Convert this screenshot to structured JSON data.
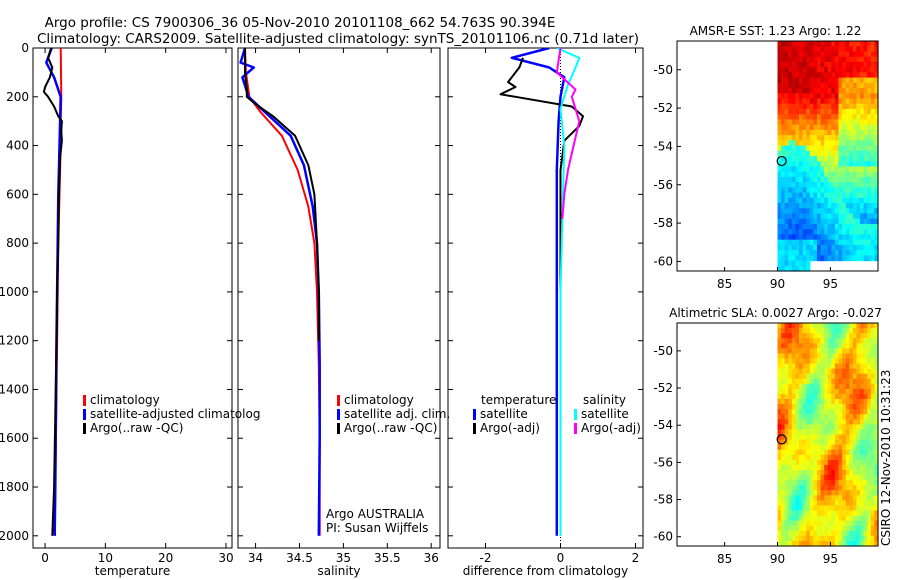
{
  "figure": {
    "title_line1": "Argo profile: CS 7900306_36 05-Nov-2010 20101108_662 54.763S 90.394E",
    "title_line2": "Climatology: CARS2009. Satellite-adjusted climatology: synTS_20101106.nc (0.71d later)",
    "side_stamp": "CSIRO 12-Nov-2010 10:31:23",
    "agency": "Argo AUSTRALIA",
    "pi": "PI: Susan Wijffels"
  },
  "colors": {
    "climatology": "#ff0000",
    "satellite": "#0000ff",
    "argo": "#000000",
    "argo_adj_salinity": "#ff00ff",
    "sat_salinity": "#00ffff"
  },
  "chart_data": [
    {
      "id": "temperature",
      "type": "line",
      "xlabel": "temperature",
      "xlim": [
        -2,
        31
      ],
      "ylim": [
        0,
        2050
      ],
      "y_reversed": true,
      "xticks": [
        0,
        10,
        20,
        30
      ],
      "yticks": [
        0,
        200,
        400,
        600,
        800,
        1000,
        1200,
        1400,
        1600,
        1800,
        2000
      ],
      "legend": [
        "climatology",
        "satellite-adjusted climatolog",
        "Argo(..raw -QC)"
      ],
      "series": [
        {
          "name": "climatology",
          "color": "#ff0000",
          "width": 2,
          "x": [
            2.6,
            2.7,
            2.6,
            2.6,
            2.5,
            2.4,
            2.2,
            2.1,
            2.0,
            1.9,
            1.8,
            1.7,
            1.6
          ],
          "y": [
            0,
            200,
            300,
            400,
            500,
            600,
            800,
            1000,
            1200,
            1400,
            1600,
            1800,
            2000
          ]
        },
        {
          "name": "satellite-adjusted climatology",
          "color": "#0000ff",
          "width": 2.5,
          "x": [
            1.1,
            0.2,
            1.5,
            2.6,
            2.5,
            2.4,
            2.2,
            2.1,
            2.0,
            1.9,
            1.8,
            1.7,
            1.6
          ],
          "y": [
            0,
            60,
            120,
            200,
            300,
            400,
            600,
            800,
            1000,
            1200,
            1500,
            1800,
            2000
          ]
        },
        {
          "name": "Argo(..raw -QC)",
          "color": "#000000",
          "width": 2,
          "x": [
            1.0,
            0.5,
            1.2,
            0.8,
            0.0,
            -0.2,
            0.5,
            1.5,
            2.2,
            2.8,
            2.7,
            2.8,
            2.5,
            2.3,
            2.2,
            2.0,
            1.9,
            1.7,
            1.5,
            1.2
          ],
          "y": [
            0,
            40,
            80,
            120,
            160,
            180,
            200,
            240,
            280,
            300,
            340,
            380,
            450,
            600,
            800,
            1000,
            1200,
            1500,
            1800,
            2000
          ]
        }
      ]
    },
    {
      "id": "salinity",
      "type": "line",
      "xlabel": "salinity",
      "xlim": [
        33.8,
        36.1
      ],
      "ylim": [
        0,
        2050
      ],
      "y_reversed": true,
      "xticks": [
        34,
        34.5,
        35,
        35.5,
        36
      ],
      "legend": [
        "climatology",
        "satellite adj. clim.",
        "Argo(..raw -QC)"
      ],
      "series": [
        {
          "name": "climatology",
          "color": "#ff0000",
          "width": 2,
          "x": [
            33.88,
            33.89,
            33.93,
            34.05,
            34.3,
            34.48,
            34.6,
            34.67,
            34.7,
            34.72,
            34.73,
            34.73
          ],
          "y": [
            0,
            100,
            200,
            260,
            360,
            500,
            650,
            800,
            1000,
            1300,
            1600,
            2000
          ]
        },
        {
          "name": "satellite adj. clim.",
          "color": "#0000ff",
          "width": 2.5,
          "x": [
            33.88,
            33.83,
            33.98,
            33.85,
            33.92,
            34.1,
            34.4,
            34.55,
            34.65,
            34.7,
            34.72,
            34.73,
            34.73,
            34.72
          ],
          "y": [
            0,
            60,
            80,
            120,
            200,
            260,
            360,
            480,
            650,
            800,
            1000,
            1300,
            1600,
            2000
          ]
        },
        {
          "name": "Argo(..raw -QC)",
          "color": "#000000",
          "width": 2,
          "x": [
            33.88,
            33.88,
            33.9,
            33.9,
            34.0,
            34.2,
            34.45,
            34.6,
            34.67,
            34.7,
            34.72,
            34.72
          ],
          "y": [
            0,
            100,
            170,
            200,
            230,
            280,
            360,
            480,
            600,
            800,
            1000,
            1200
          ]
        }
      ]
    },
    {
      "id": "difference",
      "type": "line",
      "xlabel": "difference from climatology",
      "xlim": [
        -3,
        2.2
      ],
      "ylim": [
        0,
        2050
      ],
      "y_reversed": true,
      "xticks": [
        -2,
        0,
        2
      ],
      "legend_titles": [
        "temperature",
        "salinity"
      ],
      "legend": [
        "satellite",
        "Argo(-adj)",
        "satellite",
        "Argo(-adj)"
      ],
      "series": [
        {
          "name": "satellite (temperature)",
          "color": "#0000ff",
          "width": 2.5,
          "x": [
            -0.3,
            -1.3,
            -0.3,
            0.1,
            0.0,
            -0.05,
            -0.1,
            -0.1,
            -0.1,
            -0.1,
            -0.1
          ],
          "y": [
            0,
            40,
            80,
            120,
            200,
            300,
            500,
            800,
            1100,
            1500,
            2000
          ]
        },
        {
          "name": "Argo(-adj) (temperature)",
          "color": "#000000",
          "width": 2,
          "x": [
            -1.0,
            -1.1,
            -1.4,
            -1.2,
            -1.6,
            -1.2,
            0.3,
            0.6,
            0.5,
            0.1,
            0.0,
            0.0,
            0.0,
            0.0
          ],
          "y": [
            40,
            80,
            140,
            160,
            190,
            200,
            240,
            280,
            320,
            380,
            500,
            800,
            1200,
            2000
          ]
        },
        {
          "name": "satellite (salinity)",
          "color": "#00ffff",
          "width": 2,
          "x": [
            -0.1,
            0.5,
            0.4,
            0.2,
            0.0,
            0.1,
            0.05,
            0.0,
            0.0,
            0.0
          ],
          "y": [
            0,
            40,
            80,
            150,
            250,
            400,
            700,
            1000,
            1500,
            2000
          ]
        },
        {
          "name": "Argo(-adj) (salinity)",
          "color": "#ff00ff",
          "width": 2,
          "x": [
            0.0,
            -0.1,
            0.4,
            0.3,
            0.5,
            0.35,
            0.2,
            0.1,
            0.05
          ],
          "y": [
            0,
            100,
            170,
            200,
            300,
            400,
            500,
            600,
            700
          ]
        }
      ]
    },
    {
      "id": "sst_map",
      "type": "heatmap",
      "title": "AMSR-E SST: 1.23 Argo: 1.22",
      "xlim": [
        80.5,
        99.5
      ],
      "ylim": [
        -60.5,
        -48.5
      ],
      "xticks": [
        85,
        90,
        95
      ],
      "yticks": [
        -50,
        -52,
        -54,
        -56,
        -58,
        -60
      ],
      "data_lon_range": [
        90,
        99.5
      ],
      "argo_position": {
        "lon": 90.394,
        "lat": -54.763
      }
    },
    {
      "id": "sla_map",
      "type": "heatmap",
      "title": "Altimetric SLA: 0.0027 Argo: -0.027",
      "xlim": [
        80.5,
        99.5
      ],
      "ylim": [
        -60.5,
        -48.5
      ],
      "xticks": [
        85,
        90,
        95
      ],
      "yticks": [
        -50,
        -52,
        -54,
        -56,
        -58,
        -60
      ],
      "data_lon_range": [
        90,
        99.5
      ],
      "argo_position": {
        "lon": 90.394,
        "lat": -54.763
      }
    }
  ]
}
